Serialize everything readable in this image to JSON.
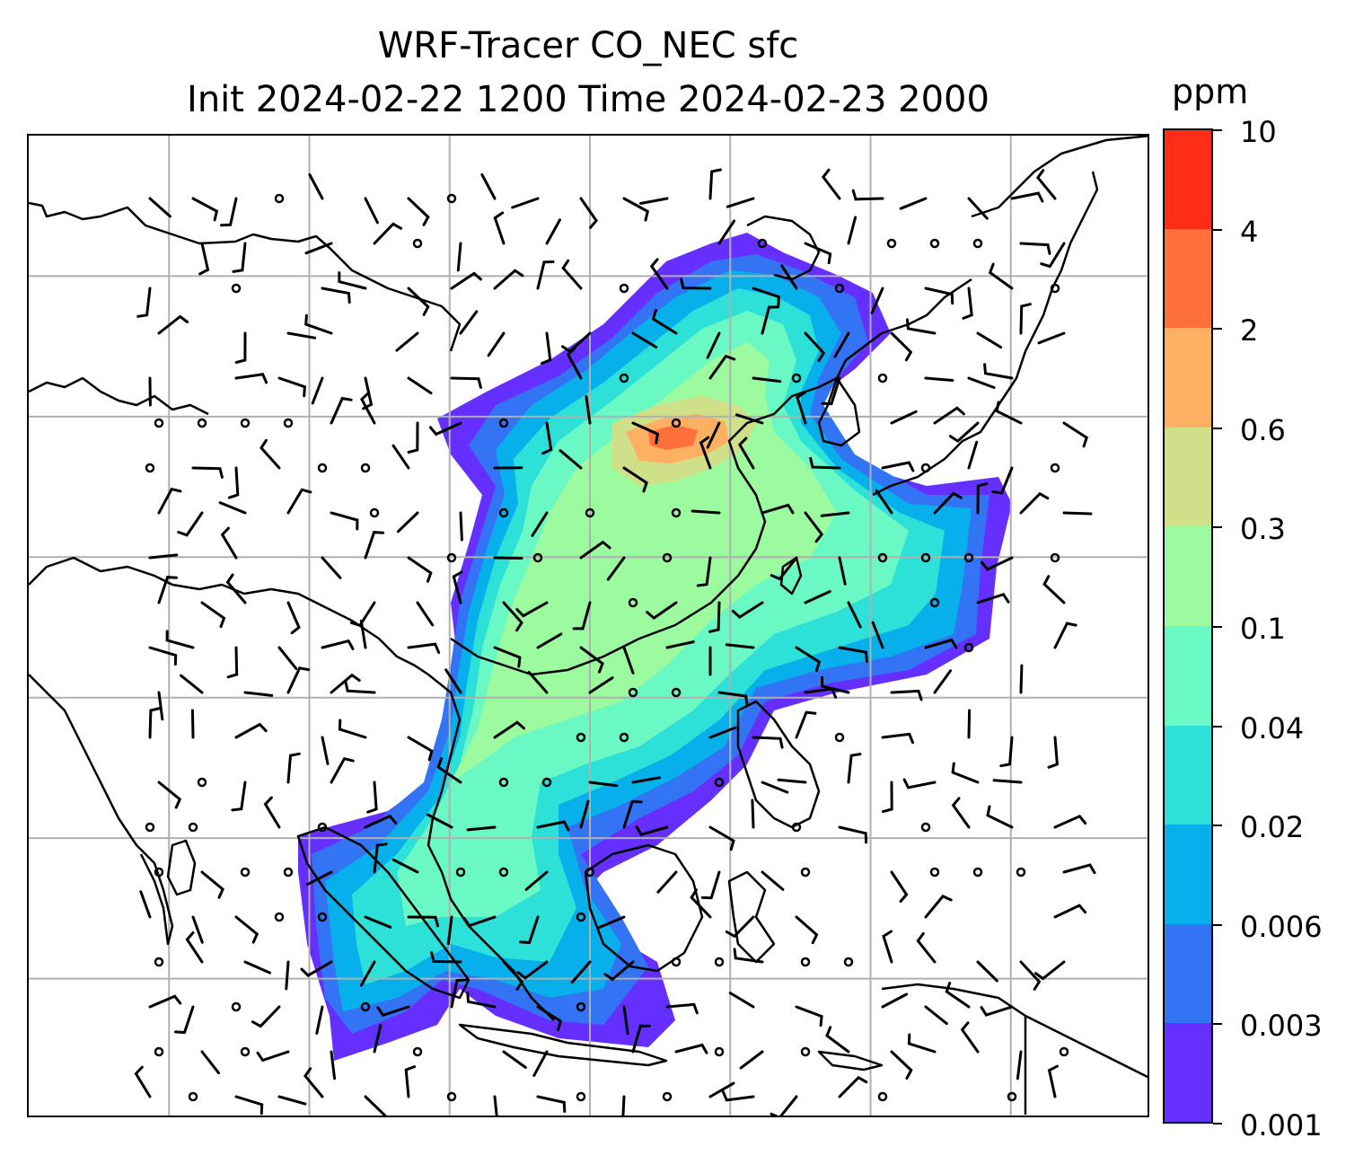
{
  "title": {
    "line1": "WRF-Tracer CO_NEC sfc",
    "line2": "Init 2024-02-22 1200 Time 2024-02-23 2000"
  },
  "colorbar": {
    "unit": "ppm",
    "levels": [
      {
        "label": "0.001",
        "color": "#6530ff"
      },
      {
        "label": "0.003",
        "color": "#3374f5"
      },
      {
        "label": "0.006",
        "color": "#08b0eb"
      },
      {
        "label": "0.02",
        "color": "#2de0d8"
      },
      {
        "label": "0.04",
        "color": "#6af9c4"
      },
      {
        "label": "0.1",
        "color": "#9bfb9e"
      },
      {
        "label": "0.3",
        "color": "#cfe088"
      },
      {
        "label": "0.6",
        "color": "#fdb061"
      },
      {
        "label": "2",
        "color": "#ff713a"
      },
      {
        "label": "4",
        "color": "#ff2c17"
      },
      {
        "label": "10",
        "color": null
      }
    ]
  },
  "map": {
    "projection": "lat-lon grid with 8 x 7 gridline cells",
    "field": "CO_NEC tracer concentration (ppm), surface",
    "overlay": "wind barbs and calm-wind circles",
    "gridline_color": "#b0b0b0",
    "coastline_color": "#000000"
  }
}
